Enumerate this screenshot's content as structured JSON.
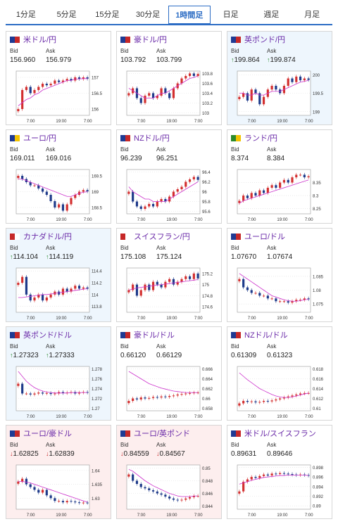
{
  "tabs": [
    {
      "label": "1分足",
      "active": false
    },
    {
      "label": "5分足",
      "active": false
    },
    {
      "label": "15分足",
      "active": false
    },
    {
      "label": "30分足",
      "active": false
    },
    {
      "label": "1時間足",
      "active": true
    },
    {
      "label": "日足",
      "active": false
    },
    {
      "label": "週足",
      "active": false
    },
    {
      "label": "月足",
      "active": false
    }
  ],
  "colors": {
    "accent": "#2b6cc4",
    "title": "#6a2aa8",
    "up_candle": "#d32f2f",
    "down_candle": "#1e3a8a",
    "ma_line": "#cc33cc",
    "ma_short": "#4aa3df",
    "arrow_up": "#2a8a2a",
    "arrow_down": "#c62828"
  },
  "bid_label": "Bid",
  "ask_label": "Ask",
  "x_ticks": [
    "7:00",
    "19:00",
    "7:00"
  ],
  "pairs": [
    {
      "name": "米ドル/円",
      "bid": "156.960",
      "ask": "156.979",
      "dir": "",
      "flags": [
        "#1f3a93",
        "#c62828"
      ],
      "yticks": [
        "157",
        "156.5",
        "156"
      ],
      "ylim": [
        155.8,
        157.2
      ],
      "close": [
        156.0,
        156.6,
        156.7,
        156.5,
        156.6,
        156.7,
        156.8,
        156.75,
        156.8,
        156.9,
        156.85,
        156.9,
        156.95,
        156.9,
        157.0,
        156.95,
        157.0,
        156.96
      ],
      "ma": [
        156.1,
        156.2,
        156.3,
        156.35,
        156.45,
        156.5,
        156.6,
        156.65,
        156.7,
        156.75,
        156.8,
        156.85,
        156.9,
        156.9,
        156.95,
        156.95,
        156.96,
        156.96
      ]
    },
    {
      "name": "豪ドル/円",
      "bid": "103.792",
      "ask": "103.799",
      "dir": "",
      "flags": [
        "#1f3a93",
        "#c62828"
      ],
      "yticks": [
        "103.8",
        "103.6",
        "103.4",
        "103.2",
        "103"
      ],
      "ylim": [
        102.95,
        103.85
      ],
      "close": [
        103.4,
        103.5,
        103.3,
        103.2,
        103.35,
        103.4,
        103.3,
        103.35,
        103.5,
        103.4,
        103.3,
        103.5,
        103.6,
        103.7,
        103.75,
        103.8,
        103.75,
        103.79
      ],
      "ma": [
        103.5,
        103.45,
        103.4,
        103.35,
        103.3,
        103.3,
        103.3,
        103.35,
        103.4,
        103.4,
        103.45,
        103.5,
        103.55,
        103.6,
        103.65,
        103.7,
        103.72,
        103.75
      ]
    },
    {
      "name": "英ポンド/円",
      "bid": "199.864",
      "ask": "199.874",
      "dir": "up",
      "flags": [
        "#1f3a93",
        "#c62828"
      ],
      "yticks": [
        "200",
        "199.5",
        "199"
      ],
      "ylim": [
        198.9,
        200.1
      ],
      "close": [
        199.4,
        199.5,
        199.3,
        199.6,
        199.5,
        199.2,
        199.4,
        199.6,
        199.7,
        199.6,
        199.5,
        199.7,
        199.9,
        199.8,
        199.95,
        199.85,
        199.9,
        199.86
      ],
      "ma": [
        199.5,
        199.5,
        199.45,
        199.45,
        199.5,
        199.45,
        199.45,
        199.5,
        199.55,
        199.55,
        199.55,
        199.6,
        199.65,
        199.7,
        199.75,
        199.8,
        199.82,
        199.85
      ]
    },
    {
      "name": "ユーロ/円",
      "bid": "169.011",
      "ask": "169.016",
      "dir": "",
      "flags": [
        "#1f3a93",
        "#f2c200"
      ],
      "yticks": [
        "169.5",
        "169",
        "168.5"
      ],
      "ylim": [
        168.3,
        169.7
      ],
      "close": [
        169.5,
        169.4,
        169.3,
        169.2,
        169.2,
        169.1,
        169.0,
        168.9,
        168.7,
        168.5,
        168.6,
        168.4,
        168.6,
        168.8,
        168.9,
        169.0,
        169.05,
        169.01
      ],
      "ma": [
        169.4,
        169.4,
        169.35,
        169.3,
        169.25,
        169.2,
        169.15,
        169.1,
        169.05,
        169.0,
        168.95,
        168.9,
        168.85,
        168.85,
        168.9,
        168.95,
        168.98,
        169.0
      ]
    },
    {
      "name": "NZドル/円",
      "bid": "96.239",
      "ask": "96.251",
      "dir": "",
      "flags": [
        "#1f3a93",
        "#c62828"
      ],
      "yticks": [
        "96.4",
        "96.2",
        "96",
        "95.8",
        "95.6"
      ],
      "ylim": [
        95.55,
        96.45
      ],
      "close": [
        96.0,
        95.8,
        95.7,
        95.65,
        95.7,
        95.75,
        95.7,
        95.8,
        95.85,
        95.8,
        95.9,
        96.0,
        96.05,
        96.1,
        96.2,
        96.25,
        96.3,
        96.24
      ],
      "ma": [
        96.1,
        96.0,
        95.95,
        95.9,
        95.85,
        95.85,
        95.8,
        95.8,
        95.8,
        95.8,
        95.85,
        95.9,
        95.95,
        96.0,
        96.05,
        96.1,
        96.15,
        96.2
      ]
    },
    {
      "name": "ランド/円",
      "bid": "8.374",
      "ask": "8.384",
      "dir": "",
      "flags": [
        "#2a8a2a",
        "#f2c200"
      ],
      "yticks": [
        "8.35",
        "8.3",
        "8.25"
      ],
      "ylim": [
        8.23,
        8.4
      ],
      "close": [
        8.28,
        8.3,
        8.29,
        8.31,
        8.3,
        8.32,
        8.31,
        8.33,
        8.34,
        8.33,
        8.35,
        8.36,
        8.35,
        8.37,
        8.38,
        8.38,
        8.37,
        8.374
      ],
      "ma": [
        8.27,
        8.28,
        8.285,
        8.29,
        8.295,
        8.3,
        8.305,
        8.31,
        8.315,
        8.32,
        8.325,
        8.33,
        8.335,
        8.34,
        8.345,
        8.35,
        8.355,
        8.36
      ]
    },
    {
      "name": "カナダドル/円",
      "bid": "114.104",
      "ask": "114.119",
      "dir": "up",
      "flags": [
        "#c62828",
        "#ffffff"
      ],
      "yticks": [
        "114.4",
        "114.2",
        "114",
        "113.8"
      ],
      "ylim": [
        113.7,
        114.45
      ],
      "close": [
        114.2,
        114.3,
        114.0,
        113.9,
        113.95,
        114.0,
        113.9,
        113.95,
        114.0,
        114.05,
        114.0,
        114.1,
        114.05,
        114.1,
        114.15,
        114.1,
        114.12,
        114.1
      ],
      "ma": [
        113.95,
        113.95,
        113.96,
        113.97,
        113.98,
        113.99,
        114.0,
        114.0,
        114.01,
        114.02,
        114.03,
        114.04,
        114.05,
        114.06,
        114.07,
        114.08,
        114.09,
        114.1
      ]
    },
    {
      "name": "スイスフラン/円",
      "bid": "175.108",
      "ask": "175.124",
      "dir": "",
      "flags": [
        "#c62828",
        "#ffffff"
      ],
      "yticks": [
        "175.2",
        "175",
        "174.8",
        "174.6"
      ],
      "ylim": [
        174.5,
        175.3
      ],
      "close": [
        174.9,
        175.0,
        174.8,
        174.9,
        175.0,
        174.9,
        175.05,
        175.0,
        174.95,
        175.05,
        175.1,
        175.0,
        175.05,
        175.1,
        175.15,
        175.1,
        175.2,
        175.11
      ],
      "ma": [
        174.9,
        174.92,
        174.94,
        174.95,
        174.96,
        174.97,
        174.98,
        174.99,
        175.0,
        175.01,
        175.02,
        175.03,
        175.04,
        175.05,
        175.06,
        175.07,
        175.08,
        175.09
      ]
    },
    {
      "name": "ユーロ/ドル",
      "bid": "1.07670",
      "ask": "1.07674",
      "dir": "",
      "flags": [
        "#1f3a93",
        "#c62828"
      ],
      "yticks": [
        "1.085",
        "1.08",
        "1.075"
      ],
      "ylim": [
        1.072,
        1.088
      ],
      "close": [
        1.084,
        1.081,
        1.08,
        1.079,
        1.079,
        1.078,
        1.078,
        1.077,
        1.077,
        1.076,
        1.076,
        1.076,
        1.0755,
        1.076,
        1.0765,
        1.0765,
        1.077,
        1.0767
      ],
      "ma": [
        1.086,
        1.085,
        1.084,
        1.083,
        1.082,
        1.081,
        1.08,
        1.079,
        1.078,
        1.0775,
        1.077,
        1.0765,
        1.0762,
        1.076,
        1.076,
        1.0762,
        1.0765,
        1.0767
      ]
    },
    {
      "name": "英ポンド/ドル",
      "bid": "1.27323",
      "ask": "1.27333",
      "dir": "up",
      "flags": [
        "#1f3a93",
        "#c62828"
      ],
      "yticks": [
        "1.278",
        "1.276",
        "1.274",
        "1.272",
        "1.27"
      ],
      "ylim": [
        1.2695,
        1.2785
      ],
      "close": [
        1.275,
        1.273,
        1.273,
        1.2728,
        1.273,
        1.2732,
        1.273,
        1.2731,
        1.2729,
        1.273,
        1.2733,
        1.2731,
        1.2732,
        1.2733,
        1.273,
        1.2732,
        1.2733,
        1.2732
      ],
      "ma": [
        1.2775,
        1.2765,
        1.2755,
        1.2748,
        1.2742,
        1.2738,
        1.2735,
        1.2733,
        1.2732,
        1.2731,
        1.2731,
        1.2731,
        1.2731,
        1.2732,
        1.2732,
        1.2732,
        1.2732,
        1.2732
      ]
    },
    {
      "name": "豪ドル/ドル",
      "bid": "0.66120",
      "ask": "0.66129",
      "dir": "",
      "flags": [
        "#1f3a93",
        "#c62828"
      ],
      "yticks": [
        "0.666",
        "0.664",
        "0.662",
        "0.66",
        "0.658"
      ],
      "ylim": [
        0.6575,
        0.6665
      ],
      "close": [
        0.6595,
        0.66,
        0.6598,
        0.6602,
        0.66,
        0.6601,
        0.6603,
        0.6602,
        0.6604,
        0.6603,
        0.6605,
        0.6606,
        0.6608,
        0.6609,
        0.661,
        0.6611,
        0.6612,
        0.6612
      ],
      "ma": [
        0.6655,
        0.665,
        0.6645,
        0.664,
        0.6635,
        0.663,
        0.6627,
        0.6624,
        0.6621,
        0.6619,
        0.6617,
        0.6615,
        0.6614,
        0.6613,
        0.6612,
        0.6612,
        0.6612,
        0.6612
      ]
    },
    {
      "name": "NZドル/ドル",
      "bid": "0.61309",
      "ask": "0.61323",
      "dir": "",
      "flags": [
        "#1f3a93",
        "#c62828"
      ],
      "yticks": [
        "0.618",
        "0.616",
        "0.614",
        "0.612",
        "0.61"
      ],
      "ylim": [
        0.6095,
        0.6185
      ],
      "close": [
        0.611,
        0.6115,
        0.6113,
        0.6114,
        0.6112,
        0.6113,
        0.6115,
        0.6114,
        0.6116,
        0.6118,
        0.612,
        0.6122,
        0.6124,
        0.6126,
        0.6128,
        0.613,
        0.6131,
        0.6131
      ],
      "ma": [
        0.6172,
        0.6165,
        0.6158,
        0.6152,
        0.6146,
        0.614,
        0.6136,
        0.6132,
        0.6128,
        0.6125,
        0.6123,
        0.6122,
        0.6122,
        0.6123,
        0.6125,
        0.6127,
        0.6129,
        0.6131
      ]
    },
    {
      "name": "ユーロ/豪ドル",
      "bid": "1.62825",
      "ask": "1.62839",
      "dir": "down",
      "flags": [
        "#1f3a93",
        "#c62828"
      ],
      "yticks": [
        "1.64",
        "1.635",
        "1.63"
      ],
      "ylim": [
        1.626,
        1.642
      ],
      "close": [
        1.636,
        1.637,
        1.635,
        1.634,
        1.633,
        1.632,
        1.633,
        1.631,
        1.63,
        1.629,
        1.629,
        1.6285,
        1.629,
        1.6288,
        1.6285,
        1.6283,
        1.6284,
        1.6283
      ],
      "ma": [
        1.636,
        1.636,
        1.6358,
        1.6355,
        1.635,
        1.6345,
        1.634,
        1.6335,
        1.633,
        1.6325,
        1.632,
        1.6315,
        1.631,
        1.6305,
        1.63,
        1.6295,
        1.629,
        1.6286
      ]
    },
    {
      "name": "ユーロ/英ポンド",
      "bid": "0.84559",
      "ask": "0.84567",
      "dir": "down",
      "flags": [
        "#1f3a93",
        "#c62828"
      ],
      "yticks": [
        "0.85",
        "0.848",
        "0.846",
        "0.844"
      ],
      "ylim": [
        0.8435,
        0.8505
      ],
      "close": [
        0.849,
        0.848,
        0.8475,
        0.847,
        0.8468,
        0.8465,
        0.8463,
        0.846,
        0.8458,
        0.8455,
        0.8452,
        0.845,
        0.8449,
        0.845,
        0.8452,
        0.8454,
        0.8456,
        0.8456
      ],
      "ma": [
        0.8498,
        0.8495,
        0.849,
        0.8485,
        0.848,
        0.8476,
        0.8472,
        0.8469,
        0.8466,
        0.8463,
        0.846,
        0.8458,
        0.8456,
        0.8455,
        0.8455,
        0.8455,
        0.8456,
        0.8456
      ]
    },
    {
      "name": "米ドル/スイスフラン",
      "bid": "0.89631",
      "ask": "0.89646",
      "dir": "",
      "flags": [
        "#1f3a93",
        "#c62828"
      ],
      "yticks": [
        "0.898",
        "0.896",
        "0.894",
        "0.892",
        "0.89"
      ],
      "ylim": [
        0.8893,
        0.8985
      ],
      "close": [
        0.893,
        0.895,
        0.8955,
        0.896,
        0.8958,
        0.8962,
        0.8965,
        0.8963,
        0.8967,
        0.8966,
        0.8968,
        0.8967,
        0.8966,
        0.8965,
        0.8964,
        0.8965,
        0.8964,
        0.8963
      ],
      "ma": [
        0.8945,
        0.8948,
        0.895,
        0.8953,
        0.8955,
        0.8957,
        0.8959,
        0.896,
        0.8961,
        0.8962,
        0.8963,
        0.8963,
        0.8964,
        0.8964,
        0.8964,
        0.8964,
        0.8964,
        0.8963
      ]
    }
  ]
}
